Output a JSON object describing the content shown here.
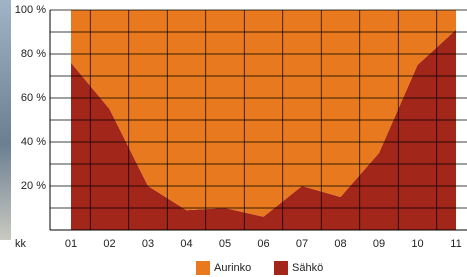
{
  "chart_data": {
    "type": "area",
    "stacked": true,
    "x_label": "kk",
    "categories": [
      "01",
      "02",
      "03",
      "04",
      "05",
      "06",
      "07",
      "08",
      "09",
      "10",
      "11"
    ],
    "series": [
      {
        "name": "Sähkö",
        "color": "#a3261a",
        "values": [
          76,
          55,
          20,
          9,
          10,
          6,
          20,
          15,
          35,
          75,
          91
        ]
      },
      {
        "name": "Aurinko",
        "color": "#e8791e",
        "values": [
          24,
          45,
          80,
          91,
          90,
          94,
          80,
          85,
          65,
          25,
          9
        ]
      }
    ],
    "ylim": [
      0,
      100
    ],
    "yticks": [
      {
        "value": 20,
        "label": "20 %"
      },
      {
        "value": 40,
        "label": "40 %"
      },
      {
        "value": 60,
        "label": "60 %"
      },
      {
        "value": 80,
        "label": "80 %"
      },
      {
        "value": 100,
        "label": "100 %"
      }
    ],
    "minor_yticks": [
      10,
      30,
      50,
      70,
      90
    ],
    "grid": true,
    "legend": "bottom"
  }
}
